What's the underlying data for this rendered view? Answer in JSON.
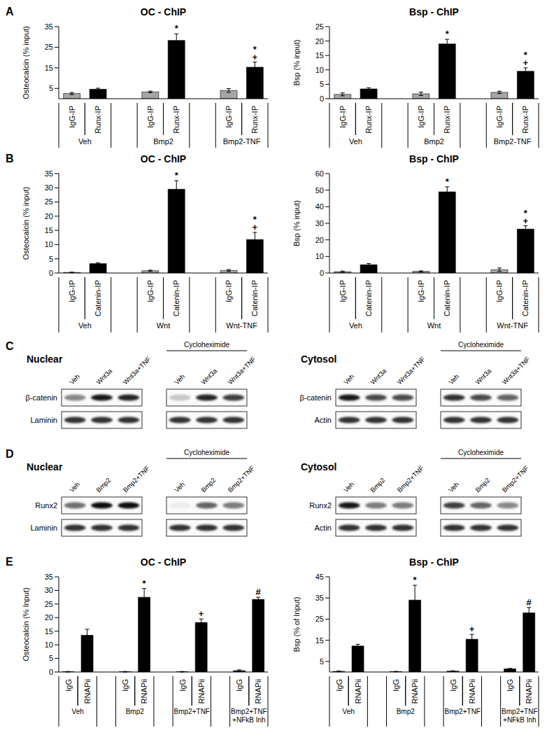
{
  "chart_data": [
    {
      "panel": "A",
      "type": "bar",
      "title": "OC - ChIP",
      "ylabel": "Osteocalcin (% input)",
      "categories": [
        "IgG-IP",
        "Runx-IP",
        null,
        "IgG-IP",
        "Runx-IP",
        null,
        "IgG-IP",
        "Runx-IP"
      ],
      "groups": [
        "Veh",
        "Bmp2",
        "Bmp2-TNF"
      ],
      "values": [
        2.5,
        4.6,
        null,
        3.3,
        28.3,
        null,
        4.0,
        15.3
      ],
      "errors": [
        0.5,
        0.5,
        null,
        0.4,
        3.2,
        null,
        0.9,
        2.5
      ],
      "significance": [
        [],
        [],
        null,
        [],
        [
          "*"
        ],
        null,
        [],
        [
          "*",
          "+"
        ]
      ],
      "colors": [
        "#a6a6a6",
        "#000000",
        null,
        "#a6a6a6",
        "#000000",
        null,
        "#a6a6a6",
        "#000000"
      ],
      "ylim": [
        0,
        35
      ],
      "yticks": [
        0,
        5,
        10,
        15,
        20,
        25,
        30,
        35
      ]
    },
    {
      "type": "bar",
      "title": "Bsp - ChIP",
      "ylabel": "Bsp (% input)",
      "categories": [
        "IgG-IP",
        "Runx-IP",
        null,
        "IgG-IP",
        "Runx-IP",
        null,
        "IgG-IP",
        "Runx-IP"
      ],
      "groups": [
        "Veh",
        "Bmp2",
        "Bmp2-TNF"
      ],
      "values": [
        1.5,
        3.4,
        null,
        1.7,
        19.0,
        null,
        2.2,
        9.5
      ],
      "errors": [
        0.5,
        0.4,
        null,
        0.6,
        1.6,
        null,
        0.4,
        1.2
      ],
      "significance": [
        [],
        [],
        null,
        [],
        [
          "*"
        ],
        null,
        [],
        [
          "*",
          "+"
        ]
      ],
      "colors": [
        "#a6a6a6",
        "#000000",
        null,
        "#a6a6a6",
        "#000000",
        null,
        "#a6a6a6",
        "#000000"
      ],
      "ylim": [
        0,
        25
      ],
      "yticks": [
        0,
        5,
        10,
        15,
        20,
        25
      ]
    },
    {
      "panel": "B",
      "type": "bar",
      "title": "OC - ChIP",
      "ylabel": "Osteocalcin (% input)",
      "categories": [
        "IgG-IP",
        "Catenin-IP",
        null,
        "IgG-IP",
        "Catenin-IP",
        null,
        "IgG-IP",
        "Catenin-IP"
      ],
      "groups": [
        "Veh",
        "Wnt",
        "Wnt-TNF"
      ],
      "values": [
        0.2,
        3.3,
        null,
        0.8,
        29.5,
        null,
        0.9,
        11.8
      ],
      "errors": [
        0.1,
        0.3,
        null,
        0.2,
        3.0,
        null,
        0.3,
        2.5
      ],
      "significance": [
        [],
        [],
        null,
        [],
        [
          "*"
        ],
        null,
        [],
        [
          "*",
          "+"
        ]
      ],
      "colors": [
        "#a6a6a6",
        "#000000",
        null,
        "#a6a6a6",
        "#000000",
        null,
        "#a6a6a6",
        "#000000"
      ],
      "ylim": [
        0,
        35
      ],
      "yticks": [
        0,
        5,
        10,
        15,
        20,
        25,
        30,
        35
      ]
    },
    {
      "type": "bar",
      "title": "Bsp - ChIP",
      "ylabel": "Bsp (% input)",
      "categories": [
        "IgG-IP",
        "Catenin-IP",
        null,
        "IgG-IP",
        "Catenin-IP",
        null,
        "IgG-IP",
        "Catenin-IP"
      ],
      "groups": [
        "Veh",
        "Wnt",
        "Wnt-TNF"
      ],
      "values": [
        0.8,
        5.0,
        null,
        1.0,
        49.0,
        null,
        2.0,
        26.5
      ],
      "errors": [
        0.4,
        0.7,
        null,
        0.3,
        3.0,
        null,
        1.0,
        2.0
      ],
      "significance": [
        [],
        [],
        null,
        [],
        [
          "*"
        ],
        null,
        [],
        [
          "*",
          "+"
        ]
      ],
      "colors": [
        "#a6a6a6",
        "#000000",
        null,
        "#a6a6a6",
        "#000000",
        null,
        "#a6a6a6",
        "#000000"
      ],
      "ylim": [
        0,
        60
      ],
      "yticks": [
        0,
        10,
        20,
        30,
        40,
        50,
        60
      ]
    },
    {
      "panel": "E",
      "type": "bar",
      "title": "OC - ChIP",
      "ylabel": "Osteocalcin (% Input)",
      "categories": [
        "IgG",
        "RNAPii",
        null,
        "IgG",
        "RNAPii",
        null,
        "IgG",
        "RNAPii",
        null,
        "IgG",
        "RNAPii"
      ],
      "groups": [
        "Veh",
        "Bmp2",
        "Bmp2+TNF",
        "Bmp2+TNF\n+NFkB Inh"
      ],
      "values": [
        0.1,
        13.5,
        null,
        0.1,
        27.5,
        null,
        0.1,
        18.2,
        null,
        0.5,
        26.7
      ],
      "errors": [
        0.1,
        2.2,
        null,
        0.1,
        3.2,
        null,
        0.1,
        1.3,
        null,
        0.3,
        0.8
      ],
      "significance": [
        [],
        [],
        null,
        [],
        [
          "*"
        ],
        null,
        [],
        [
          "+"
        ],
        null,
        [],
        [
          "#"
        ]
      ],
      "colors": [
        "#000000",
        "#000000",
        null,
        "#000000",
        "#000000",
        null,
        "#000000",
        "#000000",
        null,
        "#000000",
        "#000000"
      ],
      "ylim": [
        0,
        35
      ],
      "yticks": [
        0,
        5,
        10,
        15,
        20,
        25,
        30,
        35
      ]
    },
    {
      "type": "bar",
      "title": "Bsp - ChIP",
      "ylabel": "Bsp (% of Input)",
      "categories": [
        "IgG",
        "RNAPii",
        null,
        "IgG",
        "RNAPii",
        null,
        "IgG",
        "RNAPii",
        null,
        "IgG",
        "RNAPii"
      ],
      "groups": [
        "Veh",
        "Bmp2",
        "Bmp2+TNF",
        "Bmp2+TNF\n+NFkB Inh"
      ],
      "values": [
        0.3,
        12.3,
        null,
        0.2,
        34.0,
        null,
        0.4,
        15.5,
        null,
        1.5,
        28.0
      ],
      "errors": [
        0.2,
        0.8,
        null,
        0.1,
        7.0,
        null,
        0.2,
        2.3,
        null,
        0.2,
        2.5
      ],
      "significance": [
        [],
        [],
        null,
        [],
        [
          "*"
        ],
        null,
        [],
        [
          "+"
        ],
        null,
        [],
        [
          "#"
        ]
      ],
      "colors": [
        "#000000",
        "#000000",
        null,
        "#000000",
        "#000000",
        null,
        "#000000",
        "#000000",
        null,
        "#000000",
        "#000000"
      ],
      "ylim": [
        0,
        45
      ],
      "yticks": [
        0,
        5,
        10,
        15,
        20,
        25,
        30,
        35,
        40,
        45
      ]
    }
  ],
  "blots": [
    {
      "panel": "C",
      "sections": [
        {
          "title": "Nuclear",
          "rows": [
            "β-catenin",
            "Laminin"
          ],
          "blots": [
            {
              "lanes": [
                "Veh",
                "Wnt3a",
                "Wnt3a+TNF"
              ],
              "intensity": [
                [
                  0.45,
                  0.9,
                  0.85
                ],
                [
                  0.8,
                  0.8,
                  0.8
                ]
              ]
            },
            {
              "header": "Cycloheximide",
              "lanes": [
                "Veh",
                "Wnt3a",
                "Wnt3a+TNF"
              ],
              "intensity": [
                [
                  0.2,
                  0.85,
                  0.75
                ],
                [
                  0.8,
                  0.8,
                  0.8
                ]
              ]
            }
          ]
        },
        {
          "title": "Cytosol",
          "rows": [
            "β-catenin",
            "Actin"
          ],
          "blots": [
            {
              "lanes": [
                "Veh",
                "Wnt3a",
                "Wnt3a+TNF"
              ],
              "intensity": [
                [
                  0.9,
                  0.7,
                  0.7
                ],
                [
                  0.8,
                  0.8,
                  0.8
                ]
              ]
            },
            {
              "header": "Cycloheximide",
              "lanes": [
                "Veh",
                "Wnt3a",
                "Wnt3a+TNF"
              ],
              "intensity": [
                [
                  0.8,
                  0.7,
                  0.6
                ],
                [
                  0.8,
                  0.8,
                  0.8
                ]
              ]
            }
          ]
        }
      ]
    },
    {
      "panel": "D",
      "sections": [
        {
          "title": "Nuclear",
          "rows": [
            "Runx2",
            "Laminin"
          ],
          "blots": [
            {
              "lanes": [
                "Veh",
                "Bmp2",
                "Bmp2+TNF"
              ],
              "intensity": [
                [
                  0.55,
                  0.95,
                  0.95
                ],
                [
                  0.8,
                  0.8,
                  0.8
                ]
              ]
            },
            {
              "header": "Cycloheximide",
              "lanes": [
                "Veh",
                "Bmp2",
                "Bmp2+TNF"
              ],
              "intensity": [
                [
                  0.05,
                  0.6,
                  0.5
                ],
                [
                  0.8,
                  0.8,
                  0.8
                ]
              ]
            }
          ]
        },
        {
          "title": "Cytosol",
          "rows": [
            "Runx2",
            "Actin"
          ],
          "blots": [
            {
              "lanes": [
                "Veh",
                "Bmp2",
                "Bmp2+TNF"
              ],
              "intensity": [
                [
                  0.9,
                  0.5,
                  0.5
                ],
                [
                  0.8,
                  0.8,
                  0.8
                ]
              ]
            },
            {
              "header": "Cycloheximide",
              "lanes": [
                "Veh",
                "Bmp2",
                "Bmp2+TNF"
              ],
              "intensity": [
                [
                  0.75,
                  0.6,
                  0.45
                ],
                [
                  0.8,
                  0.8,
                  0.8
                ]
              ]
            }
          ]
        }
      ]
    }
  ]
}
